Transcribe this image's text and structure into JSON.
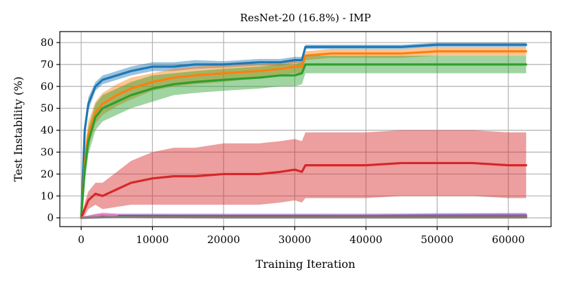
{
  "chart_data": {
    "type": "line",
    "title": "ResNet-20 (16.8%) - IMP",
    "xlabel": "Training Iteration",
    "ylabel": "Test Instability (%)",
    "xlim": [
      -3000,
      66000
    ],
    "ylim": [
      -4,
      85
    ],
    "xticks": [
      0,
      10000,
      20000,
      30000,
      40000,
      50000,
      60000
    ],
    "yticks": [
      0,
      10,
      20,
      30,
      40,
      50,
      60,
      70,
      80
    ],
    "grid": true,
    "legend": "none",
    "series": [
      {
        "color": "#1f77b4",
        "x": [
          0,
          500,
          1000,
          2000,
          3000,
          5000,
          7000,
          10000,
          13000,
          16000,
          20000,
          25000,
          28000,
          30000,
          31000,
          31500,
          35000,
          40000,
          45000,
          50000,
          55000,
          60000,
          62500
        ],
        "y": [
          0,
          40,
          52,
          60,
          63,
          65,
          67,
          69,
          69,
          70,
          70,
          71,
          71,
          72,
          72,
          78,
          78,
          78,
          78,
          79,
          79,
          79,
          79
        ],
        "band": [
          0,
          3,
          3,
          2,
          2,
          2,
          2,
          2,
          2,
          2,
          1.5,
          1.5,
          1.5,
          1.5,
          1.5,
          1,
          1,
          1,
          1,
          1,
          1,
          1,
          1
        ]
      },
      {
        "color": "#ff7f0e",
        "x": [
          0,
          500,
          1000,
          2000,
          3000,
          5000,
          7000,
          10000,
          13000,
          16000,
          20000,
          25000,
          28000,
          30000,
          31000,
          31500,
          35000,
          40000,
          45000,
          50000,
          55000,
          60000,
          62500
        ],
        "y": [
          0,
          25,
          38,
          48,
          52,
          56,
          59,
          62,
          64,
          65,
          66,
          67,
          68,
          69,
          69,
          74,
          75,
          75,
          75,
          76,
          76,
          76,
          76
        ],
        "band": [
          0,
          6,
          6,
          5,
          5,
          5,
          5,
          4,
          4,
          4,
          4,
          3,
          3,
          3,
          3,
          2,
          2,
          2,
          2,
          2,
          2,
          2,
          2
        ]
      },
      {
        "color": "#2ca02c",
        "x": [
          0,
          500,
          1000,
          2000,
          3000,
          5000,
          7000,
          10000,
          13000,
          16000,
          20000,
          25000,
          28000,
          30000,
          31000,
          31500,
          35000,
          40000,
          45000,
          50000,
          55000,
          60000,
          62500
        ],
        "y": [
          0,
          22,
          35,
          46,
          50,
          53,
          56,
          59,
          61,
          62,
          63,
          64,
          65,
          65,
          66,
          70,
          70,
          70,
          70,
          70,
          70,
          70,
          70
        ],
        "band": [
          0,
          6,
          6,
          6,
          6,
          6,
          6,
          6,
          5,
          5,
          5,
          5,
          5,
          5,
          5,
          4,
          4,
          4,
          4,
          4,
          4,
          4,
          4
        ]
      },
      {
        "color": "#d62728",
        "x": [
          0,
          500,
          1000,
          2000,
          3000,
          5000,
          7000,
          10000,
          13000,
          16000,
          20000,
          25000,
          28000,
          30000,
          31000,
          31500,
          35000,
          40000,
          45000,
          50000,
          55000,
          60000,
          62500
        ],
        "y": [
          0,
          4,
          8,
          11,
          10,
          13,
          16,
          18,
          19,
          19,
          20,
          20,
          21,
          22,
          21,
          24,
          24,
          24,
          25,
          25,
          25,
          24,
          24
        ],
        "band": [
          0,
          3,
          4,
          5,
          6,
          8,
          10,
          12,
          13,
          13,
          14,
          14,
          14,
          14,
          14,
          15,
          15,
          15,
          15,
          15,
          15,
          15,
          15
        ]
      },
      {
        "color": "#9467bd",
        "x": [
          0,
          1000,
          2000,
          3000,
          5000,
          10000,
          20000,
          30000,
          40000,
          50000,
          60000,
          62500
        ],
        "y": [
          0,
          0.5,
          1,
          1,
          1,
          1,
          1,
          1,
          1,
          1.2,
          1.3,
          1.3
        ],
        "band": [
          0,
          0.5,
          0.8,
          1,
          1,
          1,
          1,
          1,
          1,
          1,
          1,
          1
        ]
      },
      {
        "color": "#8c564b",
        "x": [
          0,
          1000,
          2000,
          3000,
          5000,
          10000,
          20000,
          30000,
          40000,
          50000,
          60000,
          62500
        ],
        "y": [
          0,
          0.3,
          0.6,
          0.8,
          0.8,
          0.7,
          0.6,
          0.6,
          0.5,
          0.5,
          0.5,
          0.5
        ],
        "band": [
          0,
          0.3,
          0.5,
          0.6,
          0.6,
          0.6,
          0.5,
          0.5,
          0.5,
          0.5,
          0.5,
          0.5
        ]
      },
      {
        "color": "#e377c2",
        "x": [
          0,
          1000,
          2000,
          3000,
          4000,
          5000
        ],
        "y": [
          0,
          0.5,
          1,
          1.5,
          1.2,
          1
        ],
        "band": [
          0,
          0.5,
          0.8,
          1,
          1,
          1
        ]
      },
      {
        "color": "#7f7f7f",
        "x": [
          0,
          5000,
          10000,
          20000,
          30000,
          40000,
          50000,
          60000,
          62500
        ],
        "y": [
          0,
          0.4,
          0.3,
          0.2,
          0.2,
          0.2,
          0.2,
          0.2,
          0.2
        ],
        "band": [
          0,
          0.3,
          0.3,
          0.2,
          0.2,
          0.2,
          0.2,
          0.2,
          0.2
        ]
      }
    ]
  }
}
